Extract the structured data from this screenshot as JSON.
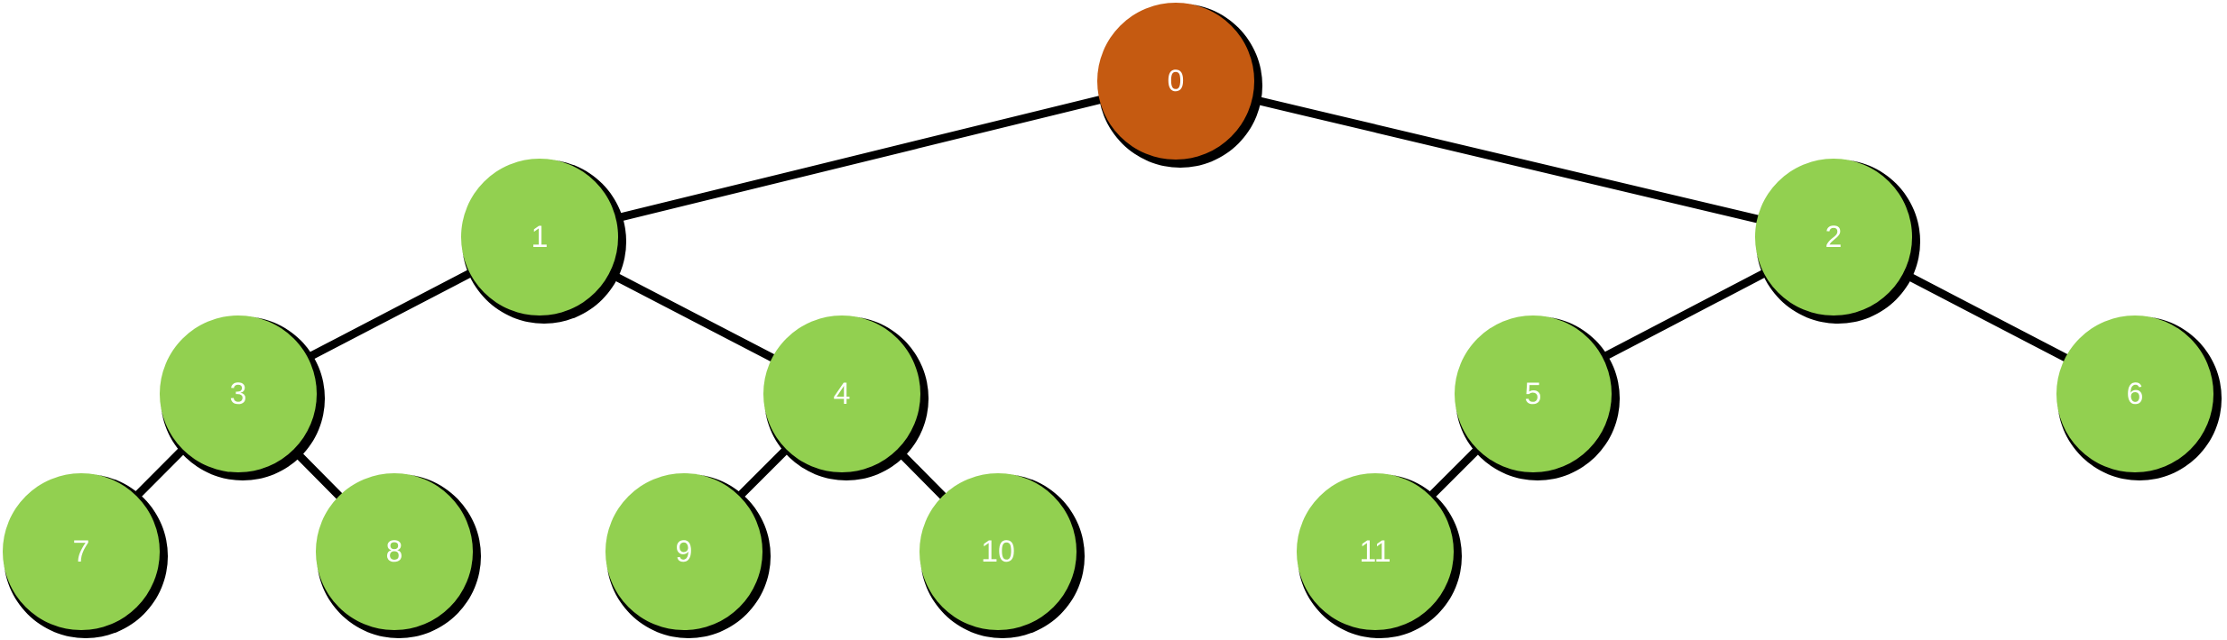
{
  "colors": {
    "root": "#c55a11",
    "node": "#92d050",
    "edge": "#000000",
    "label": "#ffffff"
  },
  "tree": {
    "nodes": [
      {
        "id": "0",
        "label": "0",
        "root": true
      },
      {
        "id": "1",
        "label": "1"
      },
      {
        "id": "2",
        "label": "2"
      },
      {
        "id": "3",
        "label": "3"
      },
      {
        "id": "4",
        "label": "4"
      },
      {
        "id": "5",
        "label": "5"
      },
      {
        "id": "6",
        "label": "6"
      },
      {
        "id": "7",
        "label": "7"
      },
      {
        "id": "8",
        "label": "8"
      },
      {
        "id": "9",
        "label": "9"
      },
      {
        "id": "10",
        "label": "10"
      },
      {
        "id": "11",
        "label": "11"
      }
    ],
    "edges": [
      [
        "0",
        "1"
      ],
      [
        "0",
        "2"
      ],
      [
        "1",
        "3"
      ],
      [
        "1",
        "4"
      ],
      [
        "2",
        "5"
      ],
      [
        "2",
        "6"
      ],
      [
        "3",
        "7"
      ],
      [
        "3",
        "8"
      ],
      [
        "4",
        "9"
      ],
      [
        "4",
        "10"
      ],
      [
        "5",
        "11"
      ]
    ]
  }
}
